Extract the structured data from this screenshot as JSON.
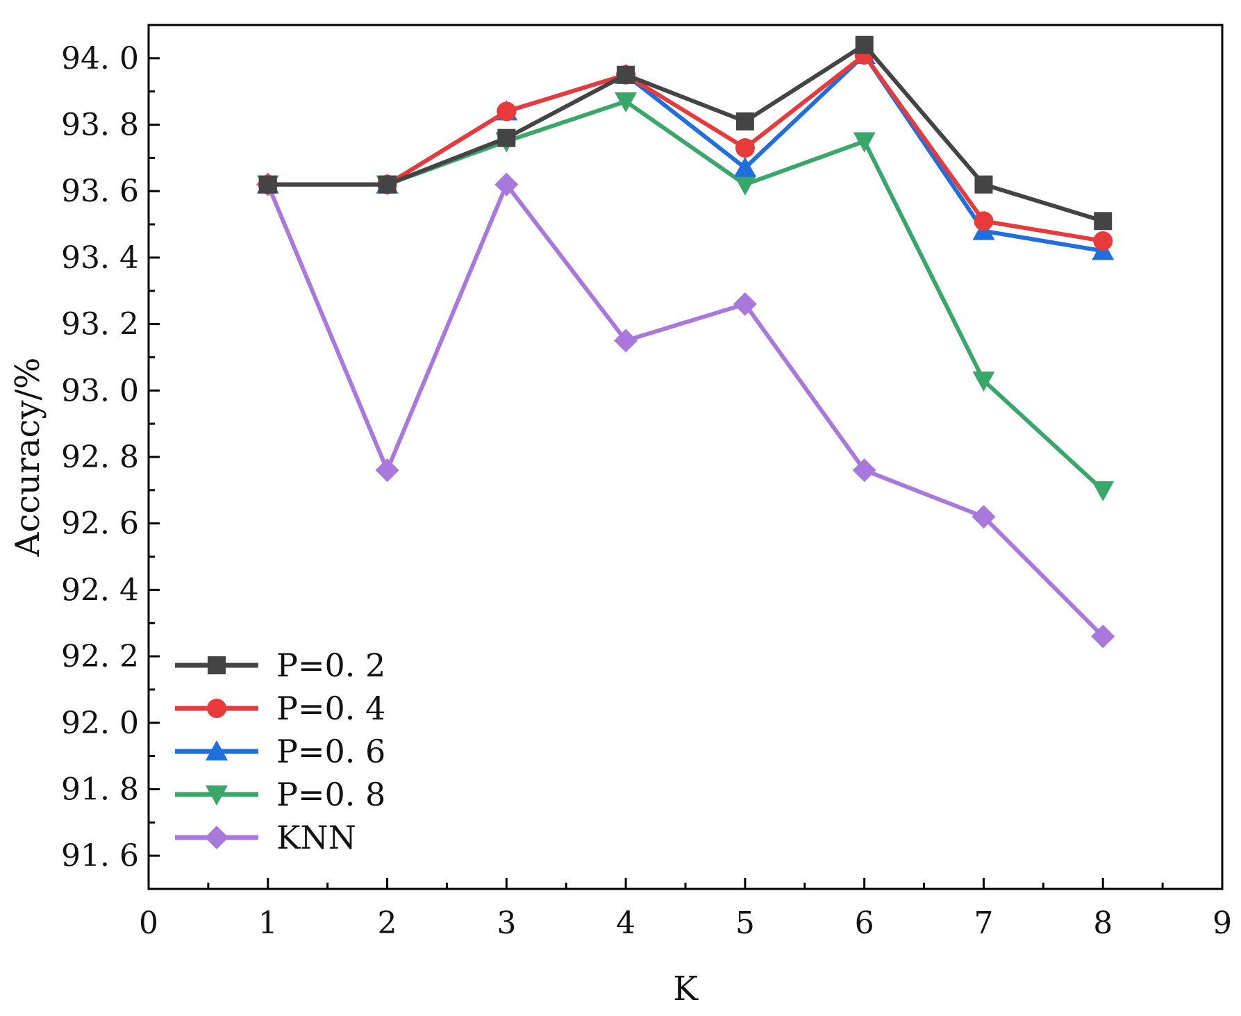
{
  "chart_data": {
    "type": "line",
    "title": "",
    "xlabel": "K",
    "ylabel": "Accuracy/%",
    "xlim": [
      0,
      9
    ],
    "ylim": [
      91.5,
      94.1
    ],
    "xticks": [
      0,
      1,
      2,
      3,
      4,
      5,
      6,
      7,
      8,
      9
    ],
    "xtick_labels": [
      "0",
      "1",
      "2",
      "3",
      "4",
      "5",
      "6",
      "7",
      "8",
      "9"
    ],
    "yticks": [
      91.6,
      91.8,
      92.0,
      92.2,
      92.4,
      92.6,
      92.8,
      93.0,
      93.2,
      93.4,
      93.6,
      93.8,
      94.0
    ],
    "ytick_labels": [
      "91. 6",
      "91. 8",
      "92. 0",
      "92. 2",
      "92. 4",
      "92. 6",
      "92. 8",
      "93. 0",
      "93. 2",
      "93. 4",
      "93. 6",
      "93. 8",
      "94. 0"
    ],
    "grid": false,
    "legend_position": "bottom-left",
    "x": [
      1,
      2,
      3,
      4,
      5,
      6,
      7,
      8
    ],
    "series": [
      {
        "name": "P=0. 2",
        "color": "#444444",
        "marker": "square",
        "values": [
          93.62,
          93.62,
          93.76,
          93.95,
          93.81,
          94.04,
          93.62,
          93.51
        ]
      },
      {
        "name": "P=0. 4",
        "color": "#e83a3a",
        "marker": "circle",
        "values": [
          93.62,
          93.62,
          93.84,
          93.95,
          93.73,
          94.01,
          93.51,
          93.45
        ]
      },
      {
        "name": "P=0. 6",
        "color": "#1f6fde",
        "marker": "triangle-up",
        "values": [
          93.62,
          93.62,
          93.84,
          93.95,
          93.67,
          94.01,
          93.48,
          93.42
        ]
      },
      {
        "name": "P=0. 8",
        "color": "#3aa76a",
        "marker": "triangle-down",
        "values": [
          93.62,
          93.62,
          93.75,
          93.87,
          93.62,
          93.75,
          93.03,
          92.7
        ]
      },
      {
        "name": "KNN",
        "color": "#a878dc",
        "marker": "diamond",
        "values": [
          93.62,
          92.76,
          93.62,
          93.15,
          93.26,
          92.76,
          92.62,
          92.26
        ]
      }
    ]
  }
}
